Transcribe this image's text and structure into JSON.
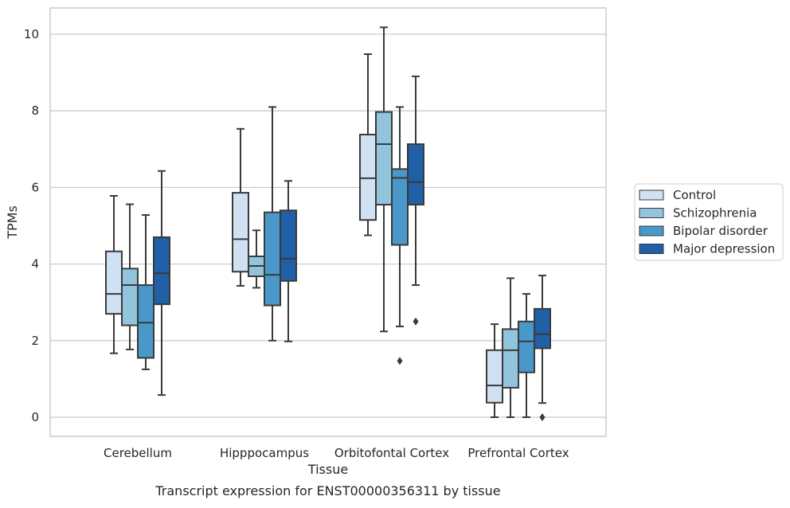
{
  "chart_data": {
    "type": "box",
    "caption": "Transcript expression for ENST00000356311 by tissue",
    "xlabel": "Tissue",
    "ylabel": "TPMs",
    "ylim": [
      -0.5,
      10.7
    ],
    "yticks": [
      0,
      2,
      4,
      6,
      8,
      10
    ],
    "grid": "horizontal",
    "legend_position": "right",
    "categories": [
      "Cerebellum",
      "Hipppocampus",
      "Orbitofontal Cortex",
      "Prefrontal Cortex"
    ],
    "series": [
      {
        "name": "Control",
        "color": "#cfe1f2",
        "boxes": [
          {
            "whislo": 1.67,
            "q1": 2.7,
            "med": 3.22,
            "q3": 4.33,
            "whishi": 5.78,
            "fliers": []
          },
          {
            "whislo": 3.43,
            "q1": 3.8,
            "med": 4.65,
            "q3": 5.86,
            "whishi": 7.53,
            "fliers": []
          },
          {
            "whislo": 4.75,
            "q1": 5.15,
            "med": 6.24,
            "q3": 7.38,
            "whishi": 9.48,
            "fliers": []
          },
          {
            "whislo": 0.0,
            "q1": 0.38,
            "med": 0.83,
            "q3": 1.75,
            "whishi": 2.43,
            "fliers": []
          }
        ]
      },
      {
        "name": "Schizophrenia",
        "color": "#93c4de",
        "boxes": [
          {
            "whislo": 1.77,
            "q1": 2.4,
            "med": 3.45,
            "q3": 3.88,
            "whishi": 5.56,
            "fliers": []
          },
          {
            "whislo": 3.38,
            "q1": 3.68,
            "med": 3.95,
            "q3": 4.2,
            "whishi": 4.88,
            "fliers": []
          },
          {
            "whislo": 2.24,
            "q1": 5.55,
            "med": 7.13,
            "q3": 7.97,
            "whishi": 10.18,
            "fliers": []
          },
          {
            "whislo": 0.0,
            "q1": 0.77,
            "med": 1.75,
            "q3": 2.3,
            "whishi": 3.63,
            "fliers": []
          }
        ]
      },
      {
        "name": "Bipolar disorder",
        "color": "#4a98c9",
        "boxes": [
          {
            "whislo": 1.25,
            "q1": 1.55,
            "med": 2.47,
            "q3": 3.45,
            "whishi": 5.28,
            "fliers": []
          },
          {
            "whislo": 2.0,
            "q1": 2.92,
            "med": 3.72,
            "q3": 5.35,
            "whishi": 8.1,
            "fliers": []
          },
          {
            "whislo": 2.37,
            "q1": 4.5,
            "med": 6.25,
            "q3": 6.48,
            "whishi": 8.1,
            "fliers": [
              1.47
            ]
          },
          {
            "whislo": 0.0,
            "q1": 1.17,
            "med": 1.98,
            "q3": 2.5,
            "whishi": 3.22,
            "fliers": []
          }
        ]
      },
      {
        "name": "Major depression",
        "color": "#2060a7",
        "boxes": [
          {
            "whislo": 0.58,
            "q1": 2.95,
            "med": 3.76,
            "q3": 4.7,
            "whishi": 6.43,
            "fliers": []
          },
          {
            "whislo": 1.98,
            "q1": 3.56,
            "med": 4.14,
            "q3": 5.4,
            "whishi": 6.17,
            "fliers": []
          },
          {
            "whislo": 3.45,
            "q1": 5.55,
            "med": 6.14,
            "q3": 7.13,
            "whishi": 8.9,
            "fliers": [
              2.5
            ]
          },
          {
            "whislo": 0.37,
            "q1": 1.8,
            "med": 2.17,
            "q3": 2.83,
            "whishi": 3.7,
            "fliers": [
              0.0
            ]
          }
        ]
      }
    ]
  }
}
